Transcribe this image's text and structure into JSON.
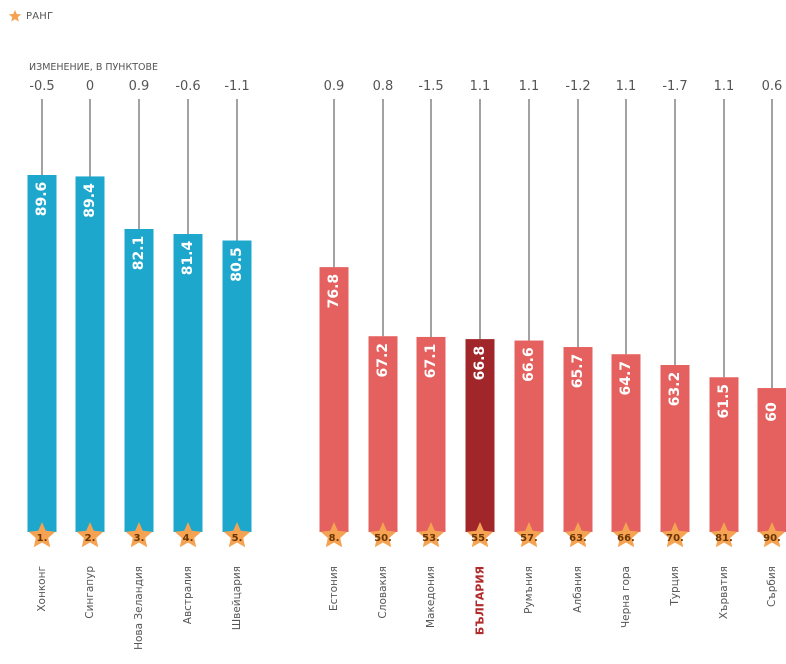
{
  "legend": {
    "label": "РАНГ",
    "icon": "star-icon"
  },
  "change_title": "ИЗМЕНЕНИЕ, В ПУНКТОВЕ",
  "colors": {
    "blue": "#1ea7cc",
    "red": "#e5615f",
    "dark_red": "#a1262a",
    "star": "#f5a352",
    "highlight_text": "#b02a2a"
  },
  "chart_data": {
    "type": "bar",
    "title": "",
    "xlabel": "",
    "ylabel": "",
    "ylim": [
      0,
      100
    ],
    "grid": false,
    "legend_position": "top-left",
    "groups": [
      {
        "name": "",
        "color": "blue",
        "categories": [
          "Хонконг",
          "Сингапур",
          "Нова Зеландия",
          "Австралия",
          "Швейцария"
        ]
      },
      {
        "name": "",
        "color": "red",
        "categories": [
          "Естония",
          "Словакия",
          "Македония",
          "БЪЛГАРИЯ",
          "Румъния",
          "Албания",
          "Черна гора",
          "Турция",
          "Хърватия",
          "Сърбия"
        ]
      }
    ],
    "categories": [
      "Хонконг",
      "Сингапур",
      "Нова Зеландия",
      "Австралия",
      "Швейцария",
      "Естония",
      "Словакия",
      "Македония",
      "БЪЛГАРИЯ",
      "Румъния",
      "Албания",
      "Черна гора",
      "Турция",
      "Хърватия",
      "Сърбия"
    ],
    "values": [
      89.6,
      89.4,
      82.1,
      81.4,
      80.5,
      76.8,
      67.2,
      67.1,
      66.8,
      66.6,
      65.7,
      64.7,
      63.2,
      61.5,
      60
    ],
    "value_labels": [
      "89.6",
      "89.4",
      "82.1",
      "81.4",
      "80.5",
      "76.8",
      "67.2",
      "67.1",
      "66.8",
      "66.6",
      "65.7",
      "64.7",
      "63.2",
      "61.5",
      "60"
    ],
    "changes": [
      "-0.5",
      "0",
      "0.9",
      "-0.6",
      "-1.1",
      "0.9",
      "0.8",
      "-1.5",
      "1.1",
      "1.1",
      "-1.2",
      "1.1",
      "-1.7",
      "1.1",
      "0.6"
    ],
    "ranks": [
      "1.",
      "2.",
      "3.",
      "4.",
      "5.",
      "8.",
      "50.",
      "53.",
      "55.",
      "57.",
      "63.",
      "66.",
      "70.",
      "81.",
      "90."
    ],
    "highlight": "БЪЛГАРИЯ"
  }
}
